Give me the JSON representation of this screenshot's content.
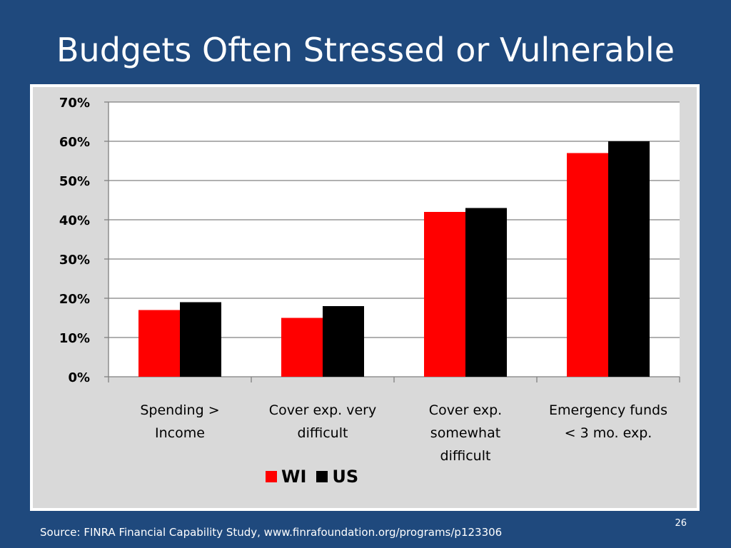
{
  "slide": {
    "title": "Budgets Often Stressed or Vulnerable",
    "source": "Source: FINRA Financial Capability Study, www.finrafoundation.org/programs/p123306",
    "page_number": "26"
  },
  "colors": {
    "background": "#1f497d",
    "plot_area": "#ffffff",
    "chart_area": "#d9d9d9",
    "WI": "#ff0000",
    "US": "#000000"
  },
  "chart_data": {
    "type": "bar",
    "categories": [
      [
        "Spending >",
        "Income"
      ],
      [
        "Cover exp. very",
        "difficult"
      ],
      [
        "Cover exp.",
        "somewhat",
        "difficult"
      ],
      [
        "Emergency funds",
        "< 3 mo. exp."
      ]
    ],
    "series": [
      {
        "name": "WI",
        "values": [
          17,
          15,
          42,
          57
        ]
      },
      {
        "name": "US",
        "values": [
          19,
          18,
          43,
          60
        ]
      }
    ],
    "ylim": [
      0,
      70
    ],
    "yticks": [
      "0%",
      "10%",
      "20%",
      "30%",
      "40%",
      "50%",
      "60%",
      "70%"
    ],
    "grid": true,
    "legend": "bottom"
  }
}
